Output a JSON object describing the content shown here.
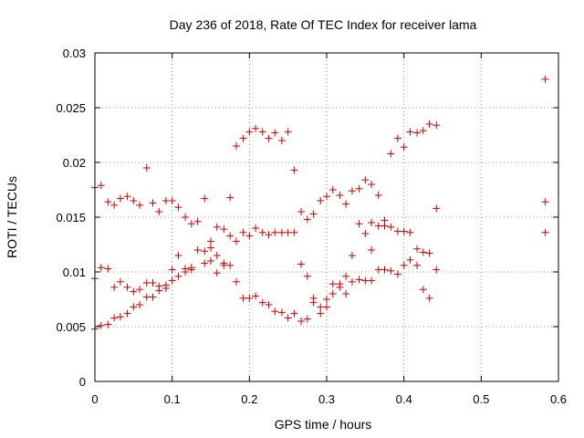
{
  "chart_data": {
    "type": "scatter",
    "title": "Day 236 of 2018, Rate Of TEC Index for receiver lama",
    "xlabel": "GPS time / hours",
    "ylabel": "ROTI / TECUs",
    "xlim": [
      0,
      0.6
    ],
    "ylim": [
      0,
      0.03
    ],
    "x_ticks": [
      "0",
      "0.1",
      "0.2",
      "0.3",
      "0.4",
      "0.5",
      "0.6"
    ],
    "y_ticks": [
      "0",
      "0.005",
      "0.01",
      "0.015",
      "0.02",
      "0.025",
      "0.03"
    ],
    "grid": true,
    "marker": "+",
    "marker_color": "#cc0000",
    "series": [
      {
        "name": "ROTI",
        "points": [
          [
            0.0,
            0.0177
          ],
          [
            0.008,
            0.0179
          ],
          [
            0.017,
            0.0164
          ],
          [
            0.025,
            0.0161
          ],
          [
            0.033,
            0.0167
          ],
          [
            0.042,
            0.0169
          ],
          [
            0.05,
            0.0165
          ],
          [
            0.058,
            0.0161
          ],
          [
            0.067,
            0.0195
          ],
          [
            0.075,
            0.0163
          ],
          [
            0.083,
            0.0155
          ],
          [
            0.092,
            0.0165
          ],
          [
            0.1,
            0.0165
          ],
          [
            0.108,
            0.0159
          ],
          [
            0.117,
            0.015
          ],
          [
            0.125,
            0.0144
          ],
          [
            0.133,
            0.0146
          ],
          [
            0.142,
            0.0167
          ],
          [
            0.15,
            0.0128
          ],
          [
            0.158,
            0.0141
          ],
          [
            0.167,
            0.0139
          ],
          [
            0.175,
            0.0168
          ],
          [
            0.183,
            0.0215
          ],
          [
            0.192,
            0.0222
          ],
          [
            0.2,
            0.0228
          ],
          [
            0.208,
            0.0231
          ],
          [
            0.217,
            0.0228
          ],
          [
            0.225,
            0.0222
          ],
          [
            0.233,
            0.0227
          ],
          [
            0.242,
            0.022
          ],
          [
            0.25,
            0.0228
          ],
          [
            0.258,
            0.0193
          ],
          [
            0.267,
            0.0155
          ],
          [
            0.275,
            0.0148
          ],
          [
            0.283,
            0.0153
          ],
          [
            0.292,
            0.0165
          ],
          [
            0.3,
            0.0169
          ],
          [
            0.308,
            0.0175
          ],
          [
            0.317,
            0.017
          ],
          [
            0.325,
            0.0162
          ],
          [
            0.333,
            0.0174
          ],
          [
            0.342,
            0.0176
          ],
          [
            0.35,
            0.0184
          ],
          [
            0.358,
            0.018
          ],
          [
            0.367,
            0.017
          ],
          [
            0.375,
            0.0147
          ],
          [
            0.383,
            0.0208
          ],
          [
            0.392,
            0.0222
          ],
          [
            0.4,
            0.0214
          ],
          [
            0.408,
            0.0228
          ],
          [
            0.417,
            0.0227
          ],
          [
            0.425,
            0.0229
          ],
          [
            0.433,
            0.0235
          ],
          [
            0.442,
            0.0234
          ],
          [
            0.442,
            0.0158
          ],
          [
            0.0,
            0.0094
          ],
          [
            0.008,
            0.0104
          ],
          [
            0.017,
            0.0103
          ],
          [
            0.025,
            0.0086
          ],
          [
            0.033,
            0.0091
          ],
          [
            0.042,
            0.0086
          ],
          [
            0.05,
            0.0082
          ],
          [
            0.058,
            0.0084
          ],
          [
            0.067,
            0.009
          ],
          [
            0.075,
            0.009
          ],
          [
            0.083,
            0.0087
          ],
          [
            0.092,
            0.0085
          ],
          [
            0.1,
            0.0102
          ],
          [
            0.108,
            0.0115
          ],
          [
            0.117,
            0.0103
          ],
          [
            0.125,
            0.0104
          ],
          [
            0.133,
            0.012
          ],
          [
            0.142,
            0.0119
          ],
          [
            0.15,
            0.0122
          ],
          [
            0.158,
            0.0115
          ],
          [
            0.167,
            0.0108
          ],
          [
            0.175,
            0.0106
          ],
          [
            0.183,
            0.0091
          ],
          [
            0.192,
            0.0076
          ],
          [
            0.2,
            0.0076
          ],
          [
            0.208,
            0.0078
          ],
          [
            0.217,
            0.0072
          ],
          [
            0.225,
            0.007
          ],
          [
            0.233,
            0.0064
          ],
          [
            0.242,
            0.0063
          ],
          [
            0.25,
            0.0058
          ],
          [
            0.258,
            0.0062
          ],
          [
            0.267,
            0.0055
          ],
          [
            0.275,
            0.0057
          ],
          [
            0.283,
            0.0076
          ],
          [
            0.292,
            0.0062
          ],
          [
            0.3,
            0.0075
          ],
          [
            0.308,
            0.0089
          ],
          [
            0.317,
            0.0089
          ],
          [
            0.325,
            0.008
          ],
          [
            0.333,
            0.0091
          ],
          [
            0.342,
            0.0093
          ],
          [
            0.35,
            0.0092
          ],
          [
            0.358,
            0.0092
          ],
          [
            0.367,
            0.0102
          ],
          [
            0.375,
            0.0102
          ],
          [
            0.383,
            0.0101
          ],
          [
            0.392,
            0.0098
          ],
          [
            0.4,
            0.0106
          ],
          [
            0.408,
            0.0111
          ],
          [
            0.417,
            0.0106
          ],
          [
            0.425,
            0.0084
          ],
          [
            0.433,
            0.0076
          ],
          [
            0.442,
            0.0102
          ],
          [
            0.0,
            0.0048
          ],
          [
            0.008,
            0.0051
          ],
          [
            0.017,
            0.0052
          ],
          [
            0.025,
            0.0058
          ],
          [
            0.033,
            0.0059
          ],
          [
            0.042,
            0.0062
          ],
          [
            0.05,
            0.0068
          ],
          [
            0.058,
            0.007
          ],
          [
            0.067,
            0.0077
          ],
          [
            0.075,
            0.0077
          ],
          [
            0.083,
            0.0083
          ],
          [
            0.092,
            0.0088
          ],
          [
            0.1,
            0.0092
          ],
          [
            0.108,
            0.0096
          ],
          [
            0.117,
            0.01
          ],
          [
            0.125,
            0.0102
          ],
          [
            0.142,
            0.0108
          ],
          [
            0.15,
            0.011
          ],
          [
            0.158,
            0.0099
          ],
          [
            0.167,
            0.0106
          ],
          [
            0.175,
            0.0133
          ],
          [
            0.183,
            0.0128
          ],
          [
            0.192,
            0.0136
          ],
          [
            0.2,
            0.0133
          ],
          [
            0.208,
            0.014
          ],
          [
            0.217,
            0.0136
          ],
          [
            0.225,
            0.0134
          ],
          [
            0.233,
            0.0136
          ],
          [
            0.242,
            0.0136
          ],
          [
            0.25,
            0.0136
          ],
          [
            0.258,
            0.0136
          ],
          [
            0.267,
            0.0107
          ],
          [
            0.275,
            0.0096
          ],
          [
            0.283,
            0.0072
          ],
          [
            0.292,
            0.0068
          ],
          [
            0.3,
            0.0068
          ],
          [
            0.308,
            0.008
          ],
          [
            0.317,
            0.0086
          ],
          [
            0.325,
            0.0096
          ],
          [
            0.333,
            0.0115
          ],
          [
            0.342,
            0.0144
          ],
          [
            0.35,
            0.0135
          ],
          [
            0.358,
            0.0145
          ],
          [
            0.358,
            0.012
          ],
          [
            0.367,
            0.0142
          ],
          [
            0.375,
            0.0142
          ],
          [
            0.383,
            0.0141
          ],
          [
            0.392,
            0.0137
          ],
          [
            0.4,
            0.0137
          ],
          [
            0.408,
            0.0136
          ],
          [
            0.417,
            0.0121
          ],
          [
            0.425,
            0.0118
          ],
          [
            0.433,
            0.0117
          ],
          [
            0.583,
            0.0276
          ],
          [
            0.583,
            0.0164
          ],
          [
            0.583,
            0.0136
          ]
        ]
      }
    ]
  }
}
